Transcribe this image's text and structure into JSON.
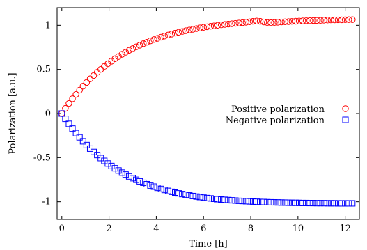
{
  "chart_data": {
    "type": "scatter",
    "xlabel": "Time  [h]",
    "ylabel": "Polarization  [a.u.]",
    "xlim": [
      -0.2,
      12.6
    ],
    "ylim": [
      -1.2,
      1.2
    ],
    "x_ticks": [
      0,
      2,
      4,
      6,
      8,
      10,
      12
    ],
    "y_ticks": [
      -1,
      -0.5,
      0,
      0.5,
      1
    ],
    "x_tick_labels": [
      "0",
      "2",
      "4",
      "6",
      "8",
      "10",
      "12"
    ],
    "y_tick_labels": [
      "-1",
      "-0.5",
      "0",
      "0.5",
      "1"
    ],
    "grid": false,
    "legend_position": "right",
    "series": [
      {
        "name": "Positive polarization",
        "marker": "circle",
        "color": "#ff0000",
        "x": [
          0,
          0.15,
          0.3,
          0.45,
          0.6,
          0.75,
          0.9,
          1.05,
          1.2,
          1.35,
          1.5,
          1.65,
          1.8,
          1.95,
          2.1,
          2.25,
          2.4,
          2.55,
          2.7,
          2.85,
          3,
          3.15,
          3.3,
          3.45,
          3.6,
          3.75,
          3.9,
          4.05,
          4.2,
          4.35,
          4.5,
          4.65,
          4.8,
          4.95,
          5.1,
          5.25,
          5.4,
          5.55,
          5.7,
          5.85,
          6,
          6.15,
          6.3,
          6.45,
          6.6,
          6.75,
          6.9,
          7.05,
          7.2,
          7.35,
          7.5,
          7.65,
          7.8,
          7.95,
          8.1,
          8.25,
          8.4,
          8.55,
          8.7,
          8.85,
          9,
          9.15,
          9.3,
          9.45,
          9.6,
          9.75,
          9.9,
          10.05,
          10.2,
          10.35,
          10.5,
          10.65,
          10.8,
          10.95,
          11.1,
          11.25,
          11.4,
          11.55,
          11.7,
          11.85,
          12,
          12.15,
          12.3
        ],
        "y": [
          0,
          0.059,
          0.114,
          0.167,
          0.217,
          0.265,
          0.31,
          0.352,
          0.393,
          0.431,
          0.467,
          0.501,
          0.534,
          0.564,
          0.593,
          0.621,
          0.646,
          0.671,
          0.694,
          0.716,
          0.736,
          0.756,
          0.774,
          0.792,
          0.808,
          0.824,
          0.838,
          0.852,
          0.865,
          0.878,
          0.89,
          0.901,
          0.911,
          0.921,
          0.93,
          0.939,
          0.947,
          0.955,
          0.963,
          0.97,
          0.977,
          0.983,
          0.989,
          0.994,
          1.0,
          1.005,
          1.01,
          1.014,
          1.018,
          1.022,
          1.026,
          1.03,
          1.035,
          1.04,
          1.045,
          1.048,
          1.045,
          1.038,
          1.032,
          1.03,
          1.032,
          1.035,
          1.038,
          1.04,
          1.042,
          1.044,
          1.046,
          1.048,
          1.05,
          1.052,
          1.053,
          1.054,
          1.055,
          1.056,
          1.058,
          1.059,
          1.06,
          1.061,
          1.062,
          1.062,
          1.063,
          1.064,
          1.064
        ]
      },
      {
        "name": "Negative polarization",
        "marker": "square",
        "color": "#0000ff",
        "x": [
          0,
          0.15,
          0.3,
          0.45,
          0.6,
          0.75,
          0.9,
          1.05,
          1.2,
          1.35,
          1.5,
          1.65,
          1.8,
          1.95,
          2.1,
          2.25,
          2.4,
          2.55,
          2.7,
          2.85,
          3,
          3.15,
          3.3,
          3.45,
          3.6,
          3.75,
          3.9,
          4.05,
          4.2,
          4.35,
          4.5,
          4.65,
          4.8,
          4.95,
          5.1,
          5.25,
          5.4,
          5.55,
          5.7,
          5.85,
          6,
          6.15,
          6.3,
          6.45,
          6.6,
          6.75,
          6.9,
          7.05,
          7.2,
          7.35,
          7.5,
          7.65,
          7.8,
          7.95,
          8.1,
          8.25,
          8.4,
          8.55,
          8.7,
          8.85,
          9,
          9.15,
          9.3,
          9.45,
          9.6,
          9.75,
          9.9,
          10.05,
          10.2,
          10.35,
          10.5,
          10.65,
          10.8,
          10.95,
          11.1,
          11.25,
          11.4,
          11.55,
          11.7,
          11.85,
          12,
          12.15,
          12.3
        ],
        "y": [
          0,
          -0.06,
          -0.117,
          -0.171,
          -0.222,
          -0.27,
          -0.315,
          -0.358,
          -0.398,
          -0.436,
          -0.471,
          -0.505,
          -0.537,
          -0.567,
          -0.595,
          -0.621,
          -0.646,
          -0.67,
          -0.692,
          -0.713,
          -0.733,
          -0.751,
          -0.769,
          -0.785,
          -0.801,
          -0.816,
          -0.829,
          -0.842,
          -0.855,
          -0.866,
          -0.877,
          -0.887,
          -0.896,
          -0.905,
          -0.913,
          -0.921,
          -0.928,
          -0.935,
          -0.941,
          -0.947,
          -0.953,
          -0.958,
          -0.962,
          -0.967,
          -0.971,
          -0.975,
          -0.978,
          -0.981,
          -0.984,
          -0.987,
          -0.99,
          -0.992,
          -0.994,
          -0.996,
          -0.998,
          -1.0,
          -1.002,
          -1.003,
          -1.005,
          -1.006,
          -1.007,
          -1.008,
          -1.009,
          -1.01,
          -1.011,
          -1.012,
          -1.012,
          -1.013,
          -1.014,
          -1.014,
          -1.015,
          -1.015,
          -1.016,
          -1.016,
          -1.016,
          -1.017,
          -1.017,
          -1.017,
          -1.018,
          -1.018,
          -1.018,
          -1.018,
          -1.018
        ]
      }
    ]
  }
}
